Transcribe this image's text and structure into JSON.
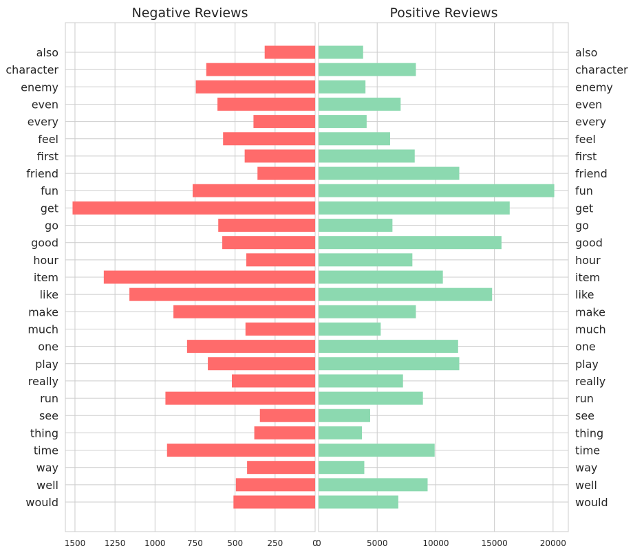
{
  "chart_data": [
    {
      "type": "bar",
      "orientation": "horizontal",
      "title": "Negative Reviews",
      "x_inverted": true,
      "xlim": [
        0,
        1560
      ],
      "xticks": [
        1500,
        1250,
        1000,
        750,
        500,
        250,
        0
      ],
      "grid": true,
      "label_side": "left",
      "color": "#ff6b6b",
      "categories": [
        "also",
        "character",
        "enemy",
        "even",
        "every",
        "feel",
        "first",
        "friend",
        "fun",
        "get",
        "go",
        "good",
        "hour",
        "item",
        "like",
        "make",
        "much",
        "one",
        "play",
        "really",
        "run",
        "see",
        "thing",
        "time",
        "way",
        "well",
        "would"
      ],
      "values": [
        315,
        680,
        745,
        610,
        385,
        575,
        440,
        360,
        765,
        1515,
        605,
        580,
        430,
        1320,
        1160,
        885,
        435,
        800,
        670,
        520,
        935,
        345,
        380,
        925,
        425,
        495,
        510
      ]
    },
    {
      "type": "bar",
      "orientation": "horizontal",
      "title": "Positive Reviews",
      "xlim": [
        0,
        21300
      ],
      "xticks": [
        0,
        5000,
        10000,
        15000,
        20000
      ],
      "grid": true,
      "label_side": "right",
      "color": "#8cd9b0",
      "categories": [
        "also",
        "character",
        "enemy",
        "even",
        "every",
        "feel",
        "first",
        "friend",
        "fun",
        "get",
        "go",
        "good",
        "hour",
        "item",
        "like",
        "make",
        "much",
        "one",
        "play",
        "really",
        "run",
        "see",
        "thing",
        "time",
        "way",
        "well",
        "would"
      ],
      "values": [
        3800,
        8300,
        4000,
        7000,
        4100,
        6100,
        8200,
        12000,
        20100,
        16300,
        6300,
        15600,
        8000,
        10600,
        14800,
        8300,
        5300,
        11900,
        12000,
        7200,
        8900,
        4400,
        3700,
        9900,
        3900,
        9300,
        6800
      ]
    }
  ]
}
